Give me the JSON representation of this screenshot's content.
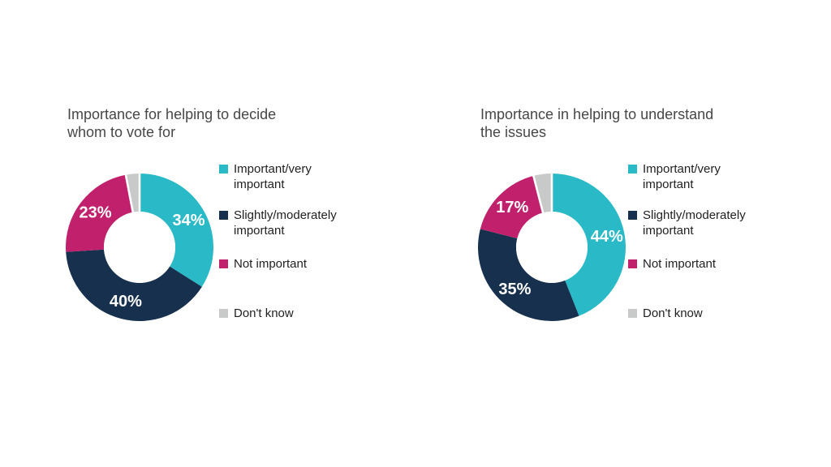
{
  "background_color": "#ffffff",
  "styles": {
    "title_color": "#474747",
    "legend_text_color": "#1f1f1f",
    "slice_label_color": "#ffffff",
    "separator_color": "#ffffff"
  },
  "chart_data": [
    {
      "type": "pie",
      "donut": true,
      "title": "Importance for helping to decide whom to vote for",
      "title_lines": [
        "Importance for helping to decide",
        "whom to vote for"
      ],
      "start_angle_deg": 0,
      "direction": "clockwise",
      "slices": [
        {
          "label": "Important/very important",
          "value": 34,
          "display": "34%",
          "color": "#29b9c7",
          "show_label": true,
          "separated": false
        },
        {
          "label": "Slightly/moderately important",
          "value": 40,
          "display": "40%",
          "color": "#16304e",
          "show_label": true,
          "separated": false
        },
        {
          "label": "Not important",
          "value": 23,
          "display": "23%",
          "color": "#c1206c",
          "show_label": true,
          "separated": false
        },
        {
          "label": "Don't know",
          "value": 3,
          "display": "",
          "color": "#c8c9c9",
          "show_label": false,
          "separated": true
        }
      ],
      "legend": [
        {
          "lines": [
            "Important/very",
            "important"
          ],
          "color": "#29b9c7"
        },
        {
          "lines": [
            "Slightly/moderately",
            "important"
          ],
          "color": "#16304e"
        },
        {
          "lines": [
            "Not important"
          ],
          "color": "#c1206c"
        },
        {
          "lines": [
            "Don't know"
          ],
          "color": "#c8c9c9"
        }
      ]
    },
    {
      "type": "pie",
      "donut": true,
      "title": "Importance in helping to understand the issues",
      "title_lines": [
        "Importance in helping to understand",
        "the issues"
      ],
      "start_angle_deg": 0,
      "direction": "clockwise",
      "slices": [
        {
          "label": "Important/very important",
          "value": 44,
          "display": "44%",
          "color": "#29b9c7",
          "show_label": true,
          "separated": false
        },
        {
          "label": "Slightly/moderately important",
          "value": 35,
          "display": "35%",
          "color": "#16304e",
          "show_label": true,
          "separated": false
        },
        {
          "label": "Not important",
          "value": 17,
          "display": "17%",
          "color": "#c1206c",
          "show_label": true,
          "separated": false
        },
        {
          "label": "Don't know",
          "value": 4,
          "display": "",
          "color": "#c8c9c9",
          "show_label": false,
          "separated": true
        }
      ],
      "legend": [
        {
          "lines": [
            "Important/very",
            "important"
          ],
          "color": "#29b9c7"
        },
        {
          "lines": [
            "Slightly/moderately",
            "important"
          ],
          "color": "#16304e"
        },
        {
          "lines": [
            "Not important"
          ],
          "color": "#c1206c"
        },
        {
          "lines": [
            "Don't know"
          ],
          "color": "#c8c9c9"
        }
      ]
    }
  ]
}
